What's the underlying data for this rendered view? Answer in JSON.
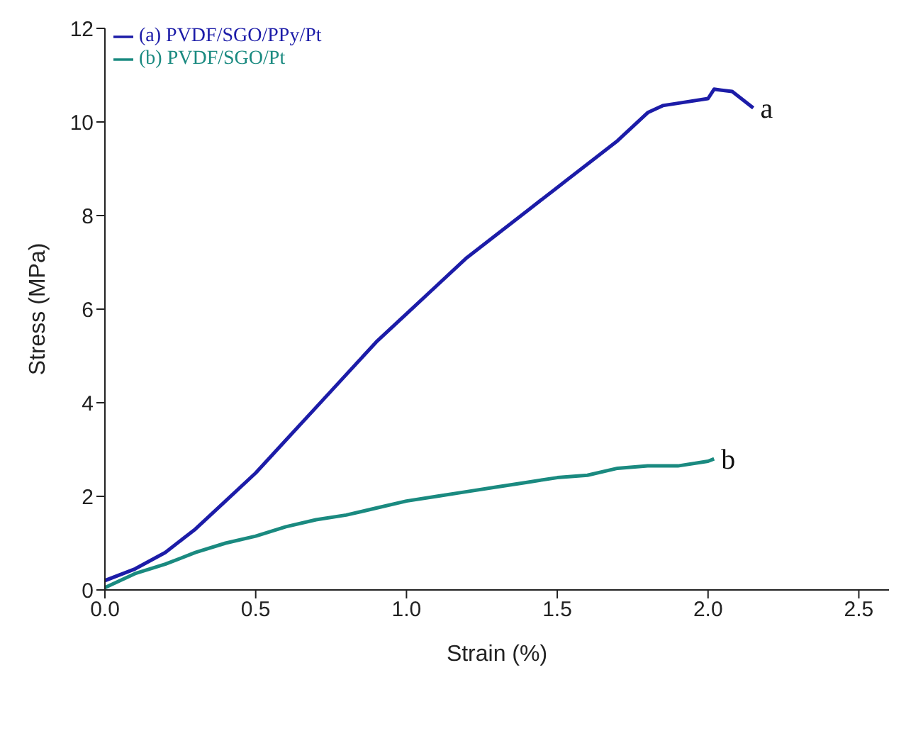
{
  "chart_data": {
    "type": "line",
    "xlabel": "Strain (%)",
    "ylabel": "Stress (MPa)",
    "xlim": [
      0,
      2.6
    ],
    "xticks": [
      {
        "value": 0,
        "label": "0.0"
      },
      0.5,
      {
        "value": 1,
        "label": "1.0"
      },
      1.5,
      {
        "value": 2,
        "label": "2.0"
      },
      2.5
    ],
    "ylim": [
      0,
      12
    ],
    "yticks": [
      0,
      2,
      4,
      6,
      8,
      10,
      12
    ],
    "grid": false,
    "legend": "top left",
    "marker": "none",
    "line_style": "solid",
    "series": [
      {
        "name": "(a) PVDF/SGO/PPy/Pt",
        "color": "#1c1ca8",
        "x": [
          0,
          0.1,
          0.2,
          0.3,
          0.4,
          0.5,
          0.6,
          0.7,
          0.8,
          0.9,
          1.0,
          1.1,
          1.2,
          1.3,
          1.4,
          1.5,
          1.6,
          1.7,
          1.8,
          1.85,
          1.9,
          2.0,
          2.02,
          2.08,
          2.15
        ],
        "values": [
          0.2,
          0.45,
          0.8,
          1.3,
          1.9,
          2.5,
          3.2,
          3.9,
          4.6,
          5.3,
          5.9,
          6.5,
          7.1,
          7.6,
          8.1,
          8.6,
          9.1,
          9.6,
          10.2,
          10.35,
          10.4,
          10.5,
          10.7,
          10.65,
          10.3
        ]
      },
      {
        "name": "(b) PVDF/SGO/Pt",
        "color": "#1a8a80",
        "x": [
          0,
          0.1,
          0.2,
          0.3,
          0.4,
          0.5,
          0.6,
          0.7,
          0.8,
          0.9,
          1.0,
          1.1,
          1.2,
          1.3,
          1.4,
          1.5,
          1.6,
          1.7,
          1.8,
          1.9,
          2.0,
          2.02
        ],
        "values": [
          0.05,
          0.35,
          0.55,
          0.8,
          1.0,
          1.15,
          1.35,
          1.5,
          1.6,
          1.75,
          1.9,
          2.0,
          2.1,
          2.2,
          2.3,
          2.4,
          2.45,
          2.6,
          2.65,
          2.65,
          2.75,
          2.8
        ]
      }
    ],
    "annotations": [
      "a",
      "b"
    ]
  }
}
